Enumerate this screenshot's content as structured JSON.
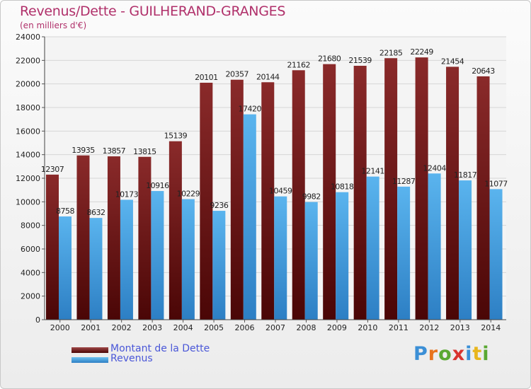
{
  "header": {
    "title": "Revenus/Dette - GUILHERAND-GRANGES",
    "subtitle": "(en milliers d'€)"
  },
  "legend": {
    "debt_label": "Montant de la Dette",
    "revenue_label": "Revenus"
  },
  "logo": {
    "letters": [
      "P",
      "r",
      "o",
      "x",
      "i",
      "t",
      "i"
    ],
    "colors": [
      "#3b8fd6",
      "#e8731d",
      "#5aa832",
      "#d8342e",
      "#3b8fd6",
      "#e8b61d",
      "#5aa832"
    ]
  },
  "colors": {
    "debt": "#7a1f1f",
    "revenue": "#4aa3e6",
    "accent": "#b0306a"
  },
  "chart_data": {
    "type": "bar",
    "title": "Revenus/Dette - GUILHERAND-GRANGES",
    "subtitle": "(en milliers d'€)",
    "categories": [
      "2000",
      "2001",
      "2002",
      "2003",
      "2004",
      "2005",
      "2006",
      "2007",
      "2008",
      "2009",
      "2010",
      "2011",
      "2012",
      "2013",
      "2014"
    ],
    "series": [
      {
        "name": "Montant de la Dette",
        "values": [
          12307,
          13935,
          13857,
          13815,
          15139,
          20101,
          20357,
          20144,
          21162,
          21680,
          21539,
          22185,
          22249,
          21454,
          20643
        ]
      },
      {
        "name": "Revenus",
        "values": [
          8758,
          8632,
          10173,
          10916,
          10229,
          9236,
          17420,
          10459,
          9982,
          10818,
          12141,
          11287,
          12404,
          11817,
          11077
        ]
      }
    ],
    "ylim": [
      0,
      24000
    ],
    "yticks": [
      0,
      2000,
      4000,
      6000,
      8000,
      10000,
      12000,
      14000,
      16000,
      18000,
      20000,
      22000,
      24000
    ],
    "grid": true,
    "legend_position": "bottom-left"
  }
}
